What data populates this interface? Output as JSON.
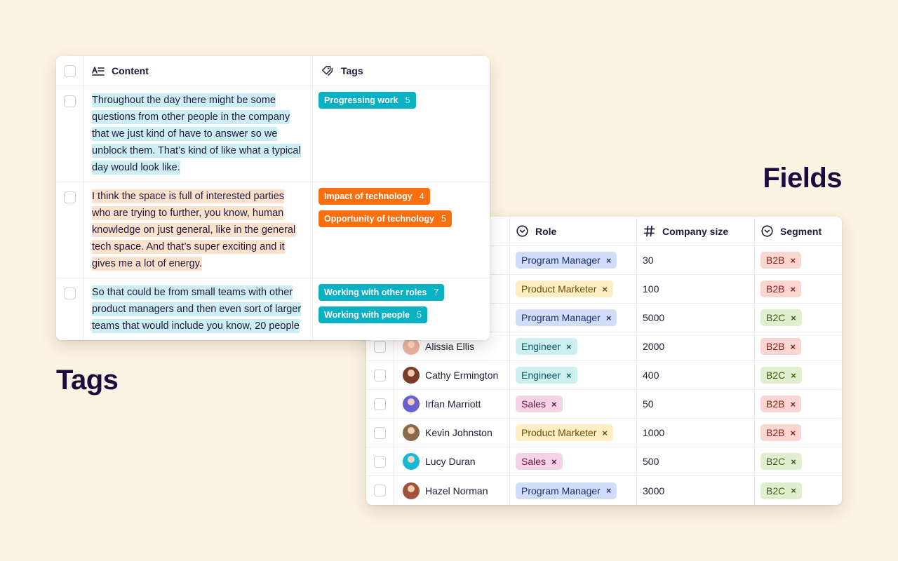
{
  "headings": {
    "fields": "Fields",
    "tags": "Tags"
  },
  "colors": {
    "teal_tag": "#09b1c4",
    "orange_tag": "#f96f10",
    "teal_highlight": "#cdeff3",
    "orange_highlight": "#fde1cd",
    "role": {
      "Program Manager": {
        "bg": "#d2ddfa",
        "fg": "#1f2f6b"
      },
      "Product Marketer": {
        "bg": "#fdeec3",
        "fg": "#6b4b08"
      },
      "Engineer": {
        "bg": "#cdeff0",
        "fg": "#0e5a5e"
      },
      "Sales": {
        "bg": "#f4d3e6",
        "fg": "#6b1444"
      }
    },
    "segment": {
      "B2B": {
        "bg": "#f9d6d2",
        "fg": "#8a2018"
      },
      "B2C": {
        "bg": "#e0efcf",
        "fg": "#3b5a14"
      }
    }
  },
  "tags_table": {
    "headers": {
      "content": "Content",
      "tags": "Tags"
    },
    "header_icons": {
      "content": "text-align-icon",
      "tags": "tag-icon"
    },
    "rows": [
      {
        "text": "Throughout the day there might be some questions from other people in the company that we just kind of have to answer so we unblock them. That’s kind of like what a typical day would look like.",
        "highlight": "teal",
        "tags": [
          {
            "label": "Progressing work",
            "count": "5",
            "color": "teal"
          }
        ]
      },
      {
        "text": "I think the space is full of interested parties who are trying to further, you know, human knowledge on just general, like in the general tech space. And that’s super exciting and it gives me a lot of energy.",
        "highlight": "orange",
        "tags": [
          {
            "label": "Impact of technology",
            "count": "4",
            "color": "orange"
          },
          {
            "label": "Opportunity of technology",
            "count": "5",
            "color": "orange"
          }
        ]
      },
      {
        "text": "So that could be from small teams with other product managers and then even sort of larger teams that would include you know, 20 people",
        "highlight": "teal",
        "tags": [
          {
            "label": "Working with other roles",
            "count": "7",
            "color": "teal"
          },
          {
            "label": "Working with people",
            "count": "5",
            "color": "teal"
          }
        ]
      }
    ]
  },
  "fields_table": {
    "headers": {
      "role": "Role",
      "company_size": "Company size",
      "segment": "Segment"
    },
    "header_icons": {
      "role": "chevron-circle-icon",
      "company_size": "hash-icon",
      "segment": "chevron-circle-icon"
    },
    "rows": [
      {
        "name": "",
        "avatar": "",
        "role": "Program Manager",
        "size": "30",
        "segment": "B2B"
      },
      {
        "name": "",
        "avatar": "",
        "role": "Product Marketer",
        "size": "100",
        "segment": "B2B"
      },
      {
        "name": "",
        "avatar": "",
        "role": "Program Manager",
        "size": "5000",
        "segment": "B2C"
      },
      {
        "name": "Alissia Ellis",
        "avatar": "#e9b3a4",
        "role": "Engineer",
        "size": "2000",
        "segment": "B2B"
      },
      {
        "name": "Cathy Ermington",
        "avatar": "#7a3a2a",
        "role": "Engineer",
        "size": "400",
        "segment": "B2C"
      },
      {
        "name": "Irfan Marriott",
        "avatar": "#6b5fd0",
        "role": "Sales",
        "size": "50",
        "segment": "B2B"
      },
      {
        "name": "Kevin Johnston",
        "avatar": "#8a6a4a",
        "role": "Product Marketer",
        "size": "1000",
        "segment": "B2B"
      },
      {
        "name": "Lucy Duran",
        "avatar": "#1ab7d4",
        "role": "Sales",
        "size": "500",
        "segment": "B2C"
      },
      {
        "name": "Hazel Norman",
        "avatar": "#a0523a",
        "role": "Program Manager",
        "size": "3000",
        "segment": "B2C"
      }
    ]
  },
  "remove_glyph": "×"
}
